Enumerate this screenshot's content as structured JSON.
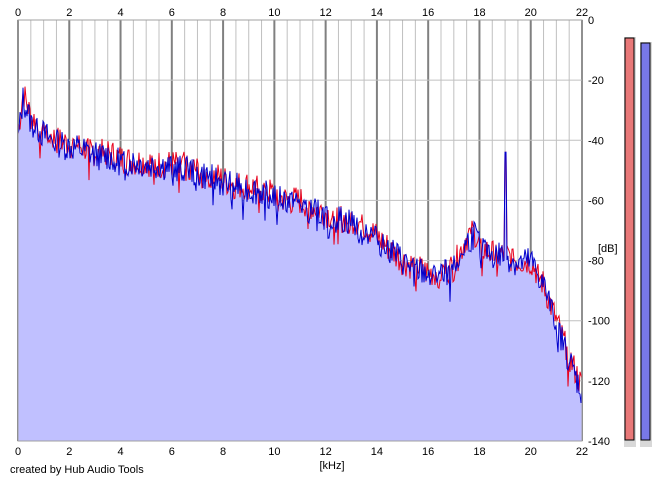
{
  "chart_data": {
    "type": "area",
    "x_ticks": [
      "0",
      "2",
      "4",
      "6",
      "8",
      "10",
      "12",
      "14",
      "16",
      "18",
      "20",
      "22"
    ],
    "y_ticks": [
      "0",
      "-20",
      "-40",
      "-60",
      "-80",
      "-100",
      "-120",
      "-140"
    ],
    "xlabel": "[kHz]",
    "ylabel": "[dB]",
    "xlim": [
      0,
      22
    ],
    "ylim": [
      -140,
      0
    ],
    "grid": true,
    "credit": "created by Hub Audio Tools",
    "colors": {
      "left_channel": "#e8001c",
      "right_channel": "#0000cc",
      "fill": "#c0c0ff",
      "grid": "#c0c0c0",
      "grid_major": "#808080"
    },
    "series": [
      {
        "color": "#e8001c",
        "x": [
          0,
          0.2,
          0.5,
          1,
          1.5,
          2,
          2.5,
          3,
          3.5,
          4,
          4.5,
          5,
          5.5,
          6,
          6.5,
          7,
          7.5,
          8,
          8.5,
          9,
          9.5,
          10,
          10.5,
          11,
          11.5,
          12,
          12.5,
          13,
          13.5,
          14,
          14.5,
          15,
          15.5,
          16,
          16.5,
          17,
          17.5,
          17.8,
          18,
          18.5,
          19,
          19.5,
          20,
          20.5,
          21,
          21.5,
          22
        ],
        "y": [
          -38,
          -24,
          -32,
          -36,
          -40,
          -41,
          -42,
          -44,
          -44,
          -46,
          -47,
          -47,
          -48,
          -48,
          -48,
          -50,
          -51,
          -53,
          -55,
          -55,
          -56,
          -58,
          -60,
          -60,
          -62,
          -64,
          -66,
          -66,
          -68,
          -72,
          -76,
          -80,
          -82,
          -84,
          -84,
          -82,
          -72,
          -70,
          -75,
          -78,
          -78,
          -80,
          -80,
          -88,
          -100,
          -112,
          -122
        ]
      },
      {
        "color": "#0000cc",
        "x": [
          0,
          0.2,
          0.5,
          1,
          1.5,
          2,
          2.5,
          3,
          3.5,
          4,
          4.5,
          5,
          5.5,
          6,
          6.5,
          7,
          7.5,
          8,
          8.5,
          9,
          9.5,
          10,
          10.5,
          11,
          11.5,
          12,
          12.5,
          13,
          13.5,
          14,
          14.5,
          15,
          15.5,
          16,
          16.5,
          17,
          17.5,
          17.8,
          18,
          18.5,
          19,
          19.5,
          20,
          20.5,
          21,
          21.5,
          22
        ],
        "y": [
          -40,
          -26,
          -34,
          -38,
          -41,
          -42,
          -43,
          -45,
          -45,
          -47,
          -47,
          -48,
          -48,
          -49,
          -49,
          -51,
          -52,
          -54,
          -55,
          -56,
          -57,
          -58,
          -60,
          -61,
          -63,
          -65,
          -66,
          -67,
          -69,
          -73,
          -76,
          -80,
          -83,
          -84,
          -85,
          -82,
          -74,
          -71,
          -75,
          -78,
          -78,
          -81,
          -80,
          -88,
          -101,
          -113,
          -124
        ]
      }
    ],
    "peaks": [
      {
        "x": 19,
        "y": -44
      }
    ],
    "level_meters": [
      {
        "color": "#e87878",
        "level": 0.0
      },
      {
        "color": "#7878e8",
        "level": 0.0
      }
    ]
  }
}
